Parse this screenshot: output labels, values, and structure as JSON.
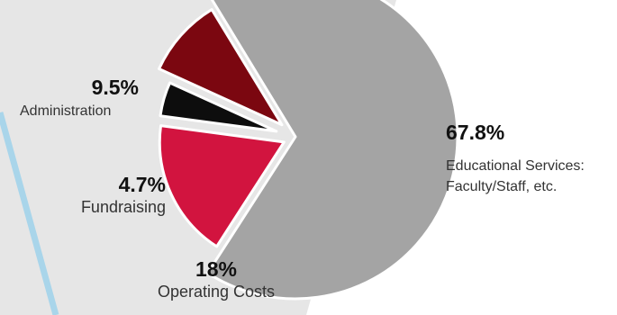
{
  "chart_data": {
    "type": "pie",
    "title": "",
    "categories": [
      "Educational Services: Faculty/Staff, etc.",
      "Operating Costs",
      "Fundraising",
      "Administration"
    ],
    "values": [
      67.8,
      18,
      4.7,
      9.5
    ],
    "series": [
      {
        "values": [
          67.8,
          18,
          4.7,
          9.5
        ]
      }
    ],
    "data_labels": [
      {
        "pct_text": "67.8%",
        "line1": "Educational Services:",
        "line2": "Faculty/Staff, etc."
      },
      {
        "pct_text": "18%",
        "line1": "Operating Costs"
      },
      {
        "pct_text": "4.7%",
        "line1": "Fundraising"
      },
      {
        "pct_text": "9.5%",
        "line1": "Administration"
      }
    ],
    "slice_colors": [
      "#a4a4a4",
      "#d2143f",
      "#0d0d0d",
      "#7b0710"
    ],
    "legend": "none",
    "grid": false
  },
  "colors": {
    "background_panel": "#e6e6e6",
    "accent_stripe": "#a9d5ea",
    "slice_outline": "#ffffff"
  }
}
